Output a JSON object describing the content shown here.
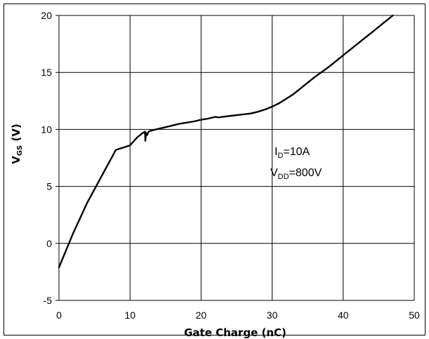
{
  "chart_data": {
    "type": "line",
    "xlabel": "Gate Charge (nC)",
    "ylabel": {
      "main": "V",
      "sub": "GS",
      "tail": " (V)"
    },
    "xlim": [
      0,
      50
    ],
    "ylim": [
      -5,
      20
    ],
    "xticks": [
      0,
      10,
      20,
      30,
      40,
      50
    ],
    "yticks": [
      -5,
      0,
      5,
      10,
      15,
      20
    ],
    "grid": true,
    "annotations": [
      {
        "main": "I",
        "sub": "D",
        "tail": "=10A"
      },
      {
        "main": "V",
        "sub": "DD",
        "tail": "=800V"
      }
    ],
    "series": [
      {
        "x": [
          0,
          2,
          4,
          6,
          8,
          10,
          11,
          11.8,
          12.1,
          12.15,
          12.25,
          12.4,
          12.6,
          13,
          14,
          15,
          17,
          19,
          20,
          21,
          22,
          22.5,
          23,
          25,
          27,
          28,
          29,
          30,
          31,
          32,
          33,
          34,
          35,
          36,
          38,
          40,
          42,
          44,
          46,
          47
        ],
        "y": [
          -2.1,
          0.9,
          3.6,
          5.9,
          8.2,
          8.6,
          9.3,
          9.7,
          9.8,
          9.0,
          9.7,
          9.5,
          9.8,
          9.9,
          10.05,
          10.2,
          10.5,
          10.7,
          10.85,
          10.95,
          11.1,
          11.05,
          11.1,
          11.25,
          11.4,
          11.55,
          11.75,
          12.0,
          12.3,
          12.7,
          13.1,
          13.6,
          14.1,
          14.6,
          15.5,
          16.5,
          17.5,
          18.5,
          19.5,
          20.0
        ]
      }
    ]
  }
}
